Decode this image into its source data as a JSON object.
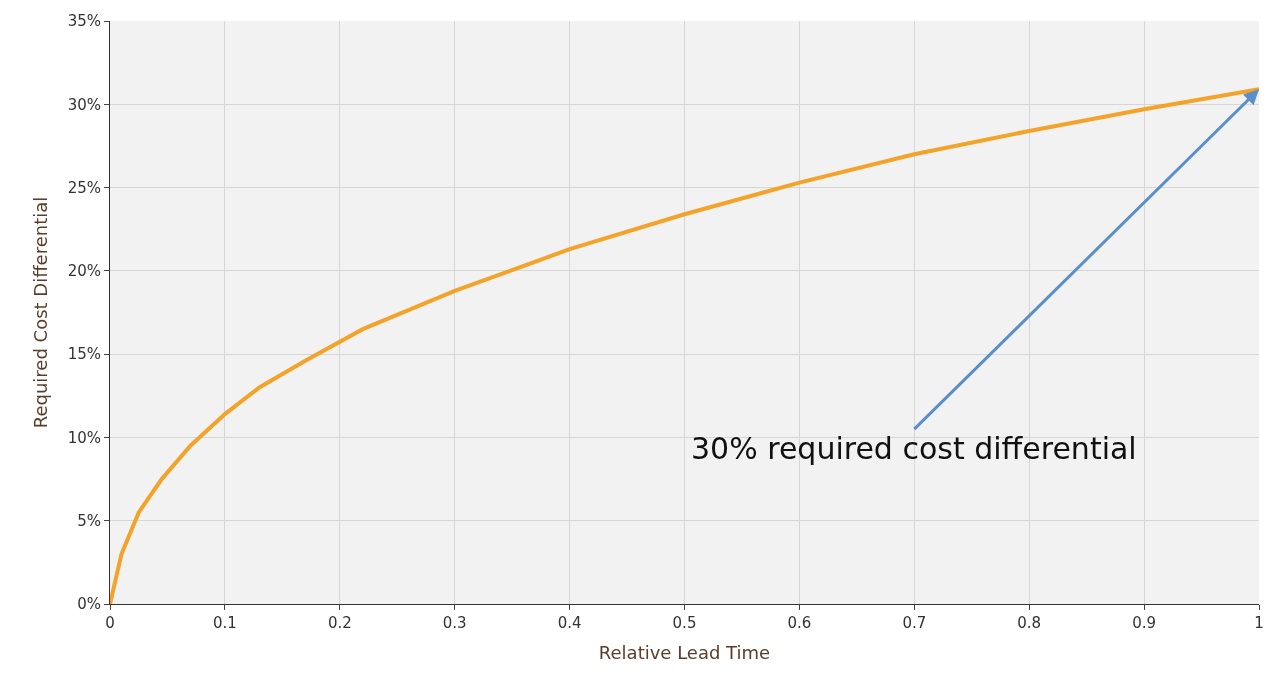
{
  "chart_data": {
    "type": "line",
    "xlabel": "Relative Lead Time",
    "ylabel": "Required Cost Differential",
    "x": [
      0,
      0.005,
      0.01,
      0.025,
      0.045,
      0.07,
      0.1,
      0.13,
      0.17,
      0.22,
      0.3,
      0.4,
      0.5,
      0.6,
      0.7,
      0.8,
      0.9,
      1
    ],
    "series": [
      {
        "color": "#f4a32a",
        "values": [
          0,
          1.5,
          3,
          5.5,
          7.5,
          9.5,
          11.4,
          13,
          14.6,
          16.5,
          18.8,
          21.3,
          23.4,
          25.3,
          27,
          28.4,
          29.7,
          30.9
        ]
      }
    ],
    "xlim": [
      0,
      1
    ],
    "xticks": [
      0,
      0.1,
      0.2,
      0.3,
      0.4,
      0.5,
      0.6,
      0.7,
      0.8,
      0.9,
      1
    ],
    "ylim": [
      0,
      35
    ],
    "yticks": [
      {
        "value": 0,
        "label": "0%"
      },
      {
        "value": 5,
        "label": "5%"
      },
      {
        "value": 10,
        "label": "10%"
      },
      {
        "value": 15,
        "label": "15%"
      },
      {
        "value": 20,
        "label": "20%"
      },
      {
        "value": 25,
        "label": "25%"
      },
      {
        "value": 30,
        "label": "30%"
      },
      {
        "value": 35,
        "label": "35%"
      }
    ],
    "annotations": [
      {
        "text": "30% required cost differential",
        "x": 1,
        "y": 30.9
      }
    ],
    "grid": true,
    "marker": "none",
    "line_style": "solid"
  }
}
